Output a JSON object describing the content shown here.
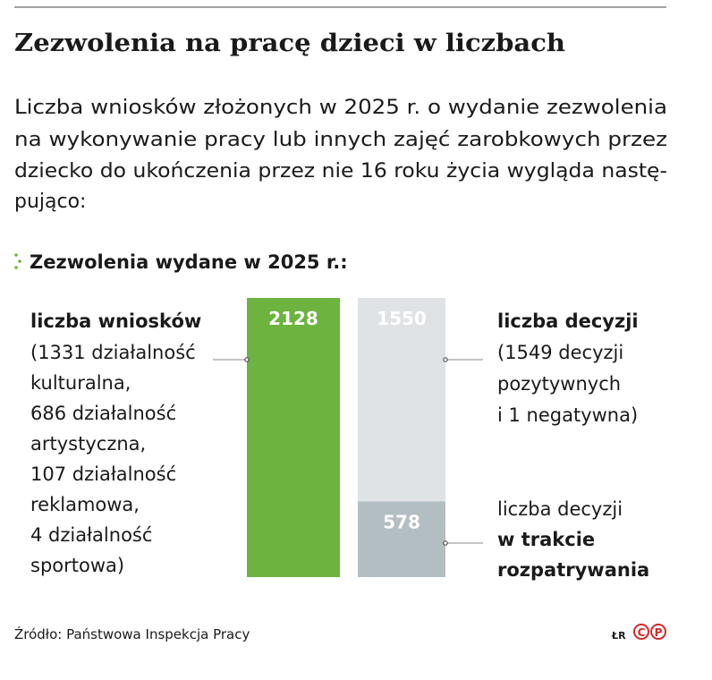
{
  "header": {
    "title": "Zezwolenia na pracę dzieci w liczbach",
    "description": [
      "Liczba wniosków złożonych w 2025 r. o wydanie zezwolenia",
      "na wykonywanie pracy lub innych zajęć zarobkowych przez",
      "dziecko do ukończenia przez nie 16 roku życia wygląda nastę-",
      "pująco:"
    ]
  },
  "chart_data": {
    "type": "bar",
    "title": "Zezwolenia wydane w 2025 r.:",
    "stacked": true,
    "categories": [
      null,
      null
    ],
    "ylim": [
      0,
      2128
    ],
    "series": [
      {
        "name": "liczba wniosków",
        "color": "#6cb33f",
        "values": [
          2128,
          null
        ],
        "note": [
          "(1331 działalność",
          "kulturalna,",
          "686 działalność",
          "artystyczna,",
          "107 działalność",
          "reklamowa,",
          "4 działalność",
          "sportowa)"
        ]
      },
      {
        "name": "liczba decyzji",
        "color": "#b3bec3",
        "values": [
          null,
          578
        ],
        "note": [
          "w trakcie",
          "rozpatrywania"
        ]
      },
      {
        "name": "liczba decyzji",
        "color": "#dfe3e6",
        "values": [
          null,
          1550
        ],
        "note": [
          "(1549 decyzji",
          "pozytywnych",
          "i 1 negatywna)"
        ]
      }
    ]
  },
  "footer": {
    "source": "Źródło: Państwowa Inspekcja Pracy",
    "credit": "ŁR",
    "logo": [
      "C",
      "P"
    ]
  }
}
